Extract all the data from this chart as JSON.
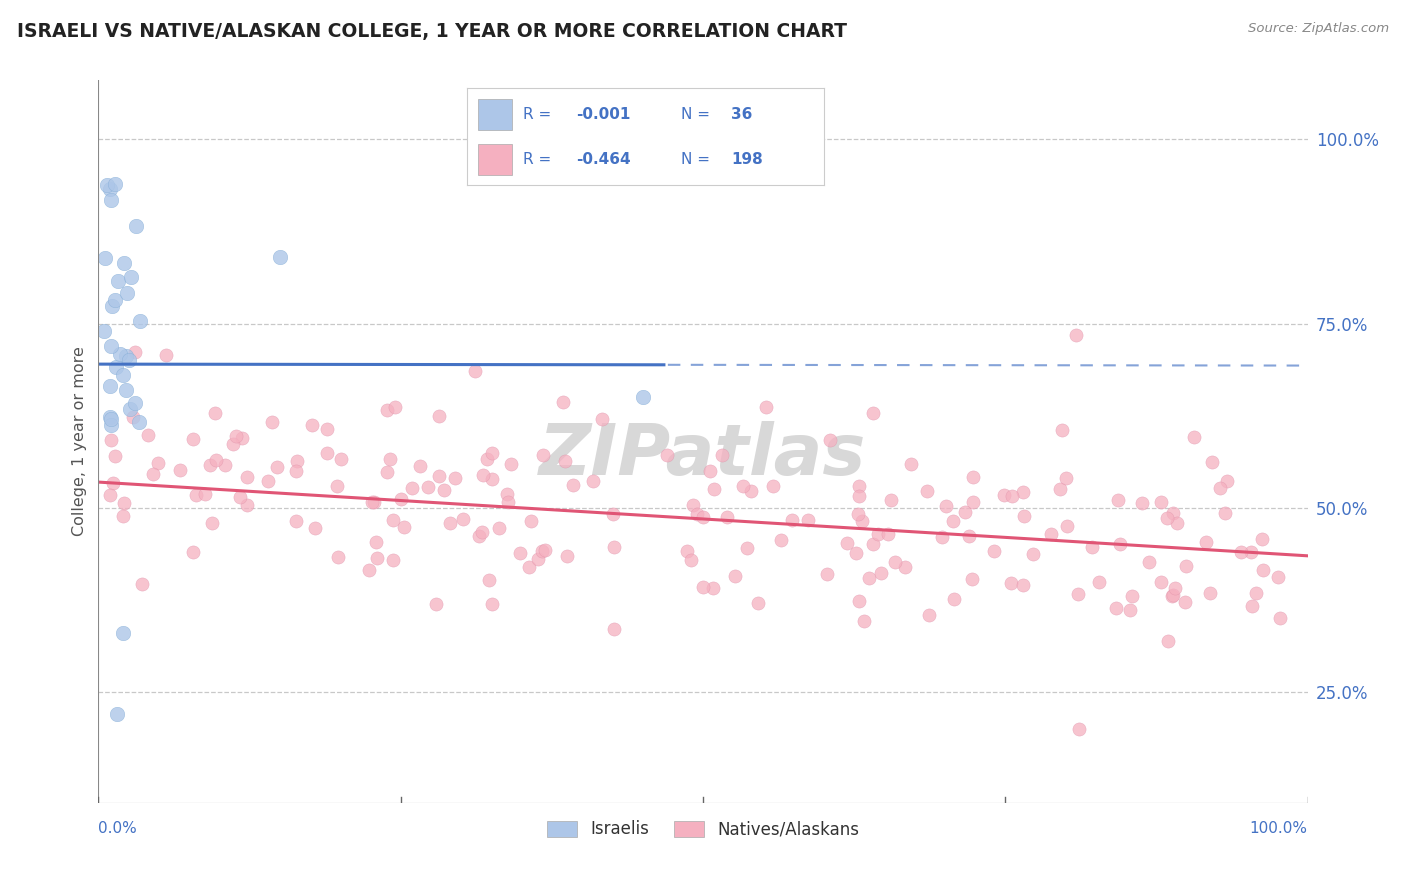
{
  "title": "ISRAELI VS NATIVE/ALASKAN COLLEGE, 1 YEAR OR MORE CORRELATION CHART",
  "source": "Source: ZipAtlas.com",
  "ylabel": "College, 1 year or more",
  "xlim": [
    0.0,
    1.0
  ],
  "ylim": [
    0.1,
    1.08
  ],
  "ytick_positions": [
    0.25,
    0.5,
    0.75,
    1.0
  ],
  "ytick_labels": [
    "25.0%",
    "50.0%",
    "75.0%",
    "100.0%"
  ],
  "legend_R1": "-0.001",
  "legend_N1": "36",
  "legend_R2": "-0.464",
  "legend_N2": "198",
  "color_blue": "#adc6e8",
  "color_pink": "#f5b0c0",
  "line_blue": "#4472c4",
  "line_pink": "#e05575",
  "text_color": "#4472c4",
  "grid_color": "#c8c8c8",
  "background": "#ffffff",
  "title_color": "#222222",
  "source_color": "#888888",
  "legend_box_edge": "#cccccc",
  "blue_line_solid_end": 0.47,
  "blue_line_y": 0.695,
  "pink_line_start_y": 0.535,
  "pink_line_end_y": 0.435,
  "watermark_color": "#d8d8d8",
  "watermark_text": "ZIPatlas"
}
